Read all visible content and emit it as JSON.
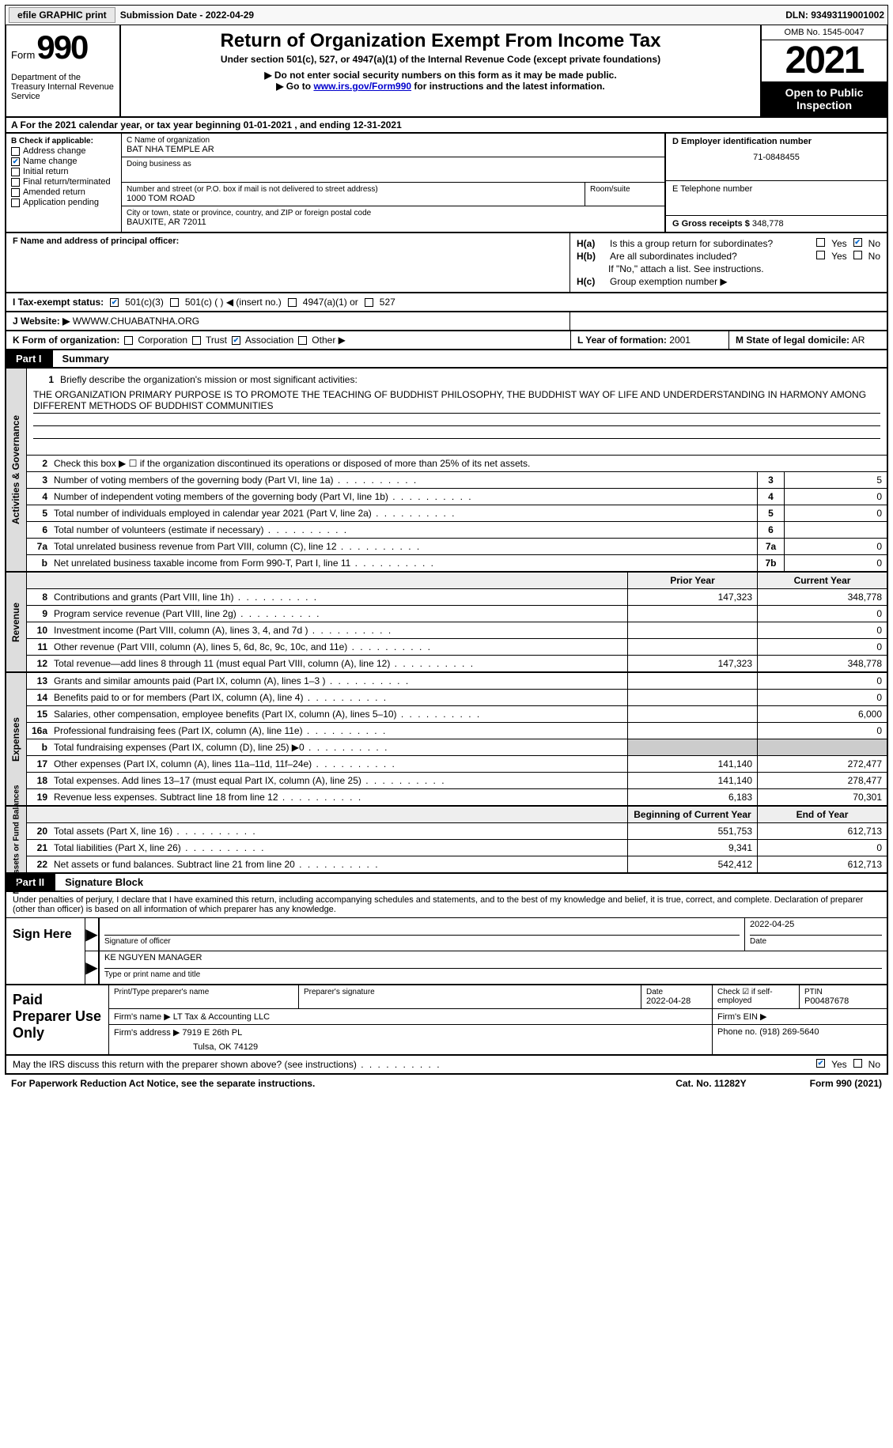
{
  "topbar": {
    "efile_btn": "efile GRAPHIC print",
    "submission": "Submission Date - 2022-04-29",
    "dln": "DLN: 93493119001002"
  },
  "header": {
    "form_word": "Form",
    "form_num": "990",
    "dept": "Department of the Treasury Internal Revenue Service",
    "title": "Return of Organization Exempt From Income Tax",
    "subtitle": "Under section 501(c), 527, or 4947(a)(1) of the Internal Revenue Code (except private foundations)",
    "note1": "▶ Do not enter social security numbers on this form as it may be made public.",
    "note2_pre": "▶ Go to ",
    "note2_link": "www.irs.gov/Form990",
    "note2_post": " for instructions and the latest information.",
    "omb": "OMB No. 1545-0047",
    "year": "2021",
    "inspection": "Open to Public Inspection"
  },
  "row_a": "A For the 2021 calendar year, or tax year beginning 01-01-2021    , and ending 12-31-2021",
  "col_b": {
    "header": "B Check if applicable:",
    "items": [
      "Address change",
      "Name change",
      "Initial return",
      "Final return/terminated",
      "Amended return",
      "Application pending"
    ],
    "checked_idx": 1
  },
  "col_c": {
    "name_lbl": "C Name of organization",
    "name": "BAT NHA TEMPLE AR",
    "dba_lbl": "Doing business as",
    "addr_lbl": "Number and street (or P.O. box if mail is not delivered to street address)",
    "addr": "1000 TOM ROAD",
    "room_lbl": "Room/suite",
    "city_lbl": "City or town, state or province, country, and ZIP or foreign postal code",
    "city": "BAUXITE, AR  72011"
  },
  "col_d": {
    "ein_lbl": "D Employer identification number",
    "ein": "71-0848455",
    "tel_lbl": "E Telephone number",
    "gross_lbl": "G Gross receipts $",
    "gross": "348,778"
  },
  "row_f": {
    "label": "F  Name and address of principal officer:"
  },
  "row_h": {
    "ha_lbl": "H(a)",
    "ha_txt": "Is this a group return for subordinates?",
    "ha_no": true,
    "hb_lbl": "H(b)",
    "hb_txt": "Are all subordinates included?",
    "hb_note": "If \"No,\" attach a list. See instructions.",
    "hc_lbl": "H(c)",
    "hc_txt": "Group exemption number ▶"
  },
  "row_i": {
    "label": "I     Tax-exempt status:",
    "opts": [
      "501(c)(3)",
      "501(c) (  ) ◀ (insert no.)",
      "4947(a)(1) or",
      "527"
    ],
    "checked_idx": 0
  },
  "row_j": {
    "label": "J    Website: ▶",
    "val": "WWWW.CHUABATNHA.ORG"
  },
  "row_k": {
    "label": "K Form of organization:",
    "opts": [
      "Corporation",
      "Trust",
      "Association",
      "Other ▶"
    ],
    "checked_idx": 2,
    "l_lbl": "L Year of formation:",
    "l_val": "2001",
    "m_lbl": "M State of legal domicile:",
    "m_val": "AR"
  },
  "parts": {
    "p1_num": "Part I",
    "p1_title": "Summary",
    "p2_num": "Part II",
    "p2_title": "Signature Block"
  },
  "summary": {
    "sec1_label": "Activities & Governance",
    "line1_lbl": "Briefly describe the organization's mission or most significant activities:",
    "line1_txt": "THE ORGANIZATION PRIMARY PURPOSE IS TO PROMOTE THE TEACHING OF BUDDHIST PHILOSOPHY, THE BUDDHIST WAY OF LIFE AND UNDERDERSTANDING IN HARMONY AMONG DIFFERENT METHODS OF BUDDHIST COMMUNITIES",
    "line2": "Check this box ▶ ☐ if the organization discontinued its operations or disposed of more than 25% of its net assets.",
    "rows_ag": [
      {
        "n": "3",
        "t": "Number of voting members of the governing body (Part VI, line 1a)",
        "box": "3",
        "v": "5"
      },
      {
        "n": "4",
        "t": "Number of independent voting members of the governing body (Part VI, line 1b)",
        "box": "4",
        "v": "0"
      },
      {
        "n": "5",
        "t": "Total number of individuals employed in calendar year 2021 (Part V, line 2a)",
        "box": "5",
        "v": "0"
      },
      {
        "n": "6",
        "t": "Total number of volunteers (estimate if necessary)",
        "box": "6",
        "v": ""
      },
      {
        "n": "7a",
        "t": "Total unrelated business revenue from Part VIII, column (C), line 12",
        "box": "7a",
        "v": "0"
      },
      {
        "n": "b",
        "t": "Net unrelated business taxable income from Form 990-T, Part I, line 11",
        "box": "7b",
        "v": "0"
      }
    ],
    "hdr_prior": "Prior Year",
    "hdr_current": "Current Year",
    "sec2_label": "Revenue",
    "rows_rev": [
      {
        "n": "8",
        "t": "Contributions and grants (Part VIII, line 1h)",
        "p": "147,323",
        "c": "348,778"
      },
      {
        "n": "9",
        "t": "Program service revenue (Part VIII, line 2g)",
        "p": "",
        "c": "0"
      },
      {
        "n": "10",
        "t": "Investment income (Part VIII, column (A), lines 3, 4, and 7d )",
        "p": "",
        "c": "0"
      },
      {
        "n": "11",
        "t": "Other revenue (Part VIII, column (A), lines 5, 6d, 8c, 9c, 10c, and 11e)",
        "p": "",
        "c": "0"
      },
      {
        "n": "12",
        "t": "Total revenue—add lines 8 through 11 (must equal Part VIII, column (A), line 12)",
        "p": "147,323",
        "c": "348,778"
      }
    ],
    "sec3_label": "Expenses",
    "rows_exp": [
      {
        "n": "13",
        "t": "Grants and similar amounts paid (Part IX, column (A), lines 1–3 )",
        "p": "",
        "c": "0"
      },
      {
        "n": "14",
        "t": "Benefits paid to or for members (Part IX, column (A), line 4)",
        "p": "",
        "c": "0"
      },
      {
        "n": "15",
        "t": "Salaries, other compensation, employee benefits (Part IX, column (A), lines 5–10)",
        "p": "",
        "c": "6,000"
      },
      {
        "n": "16a",
        "t": "Professional fundraising fees (Part IX, column (A), line 11e)",
        "p": "",
        "c": "0"
      },
      {
        "n": "b",
        "t": "Total fundraising expenses (Part IX, column (D), line 25) ▶0",
        "p": "shaded",
        "c": "shaded"
      },
      {
        "n": "17",
        "t": "Other expenses (Part IX, column (A), lines 11a–11d, 11f–24e)",
        "p": "141,140",
        "c": "272,477"
      },
      {
        "n": "18",
        "t": "Total expenses. Add lines 13–17 (must equal Part IX, column (A), line 25)",
        "p": "141,140",
        "c": "278,477"
      },
      {
        "n": "19",
        "t": "Revenue less expenses. Subtract line 18 from line 12",
        "p": "6,183",
        "c": "70,301"
      }
    ],
    "hdr_begin": "Beginning of Current Year",
    "hdr_end": "End of Year",
    "sec4_label": "Net Assets or Fund Balances",
    "rows_net": [
      {
        "n": "20",
        "t": "Total assets (Part X, line 16)",
        "p": "551,753",
        "c": "612,713"
      },
      {
        "n": "21",
        "t": "Total liabilities (Part X, line 26)",
        "p": "9,341",
        "c": "0"
      },
      {
        "n": "22",
        "t": "Net assets or fund balances. Subtract line 21 from line 20",
        "p": "542,412",
        "c": "612,713"
      }
    ]
  },
  "sig": {
    "decl": "Under penalties of perjury, I declare that I have examined this return, including accompanying schedules and statements, and to the best of my knowledge and belief, it is true, correct, and complete. Declaration of preparer (other than officer) is based on all information of which preparer has any knowledge.",
    "sign_here": "Sign Here",
    "sig_lbl": "Signature of officer",
    "date": "2022-04-25",
    "date_lbl": "Date",
    "name": "KE NGUYEN  MANAGER",
    "name_lbl": "Type or print name and title"
  },
  "prep": {
    "title": "Paid Preparer Use Only",
    "r1": {
      "c1_lbl": "Print/Type preparer's name",
      "c2_lbl": "Preparer's signature",
      "c3_lbl": "Date",
      "c3_val": "2022-04-28",
      "c4_lbl": "Check ☑ if self-employed",
      "c5_lbl": "PTIN",
      "c5_val": "P00487678"
    },
    "r2": {
      "lbl": "Firm's name      ▶",
      "val": "LT Tax & Accounting LLC",
      "ein_lbl": "Firm's EIN ▶"
    },
    "r3": {
      "lbl": "Firm's address ▶",
      "val": "7919 E 26th PL",
      "val2": "Tulsa, OK  74129",
      "ph_lbl": "Phone no.",
      "ph_val": "(918) 269-5640"
    }
  },
  "footer_q": {
    "txt": "May the IRS discuss this return with the preparer shown above? (see instructions)",
    "yes": true
  },
  "footer": {
    "l": "For Paperwork Reduction Act Notice, see the separate instructions.",
    "m": "Cat. No. 11282Y",
    "r": "Form 990 (2021)"
  }
}
